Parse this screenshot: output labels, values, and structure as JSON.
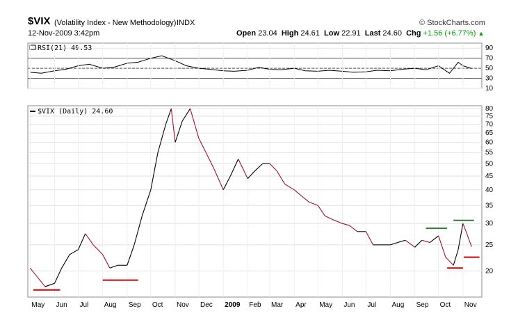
{
  "header": {
    "symbol": "$VIX",
    "description": "(Volatility Index - New Methodology)",
    "exchange": "INDX",
    "brand": "© StockCharts.com",
    "timestamp": "12-Nov-2009 3:42pm",
    "quote": {
      "open_label": "Open",
      "open": "23.04",
      "high_label": "High",
      "high": "24.61",
      "low_label": "Low",
      "low": "22.91",
      "last_label": "Last",
      "last": "24.60",
      "chg_label": "Chg",
      "chg": "+1.56 (+6.77%)",
      "arrow": "▲"
    }
  },
  "chart_data": [
    {
      "type": "line",
      "legend": "RSI(21) 49.53",
      "ylim": [
        10,
        100
      ],
      "yticks": [
        10,
        30,
        50,
        70,
        90
      ],
      "reference_lines": [
        30,
        50,
        70
      ],
      "x": [
        "2008-05-01",
        "2008-05-15",
        "2008-06-01",
        "2008-06-15",
        "2008-07-01",
        "2008-07-15",
        "2008-08-01",
        "2008-08-15",
        "2008-09-01",
        "2008-09-15",
        "2008-10-01",
        "2008-10-15",
        "2008-11-01",
        "2008-11-15",
        "2008-12-01",
        "2008-12-15",
        "2009-01-01",
        "2009-01-15",
        "2009-02-01",
        "2009-02-15",
        "2009-03-01",
        "2009-03-15",
        "2009-04-01",
        "2009-04-15",
        "2009-05-01",
        "2009-05-15",
        "2009-06-01",
        "2009-06-15",
        "2009-07-01",
        "2009-07-15",
        "2009-08-01",
        "2009-08-15",
        "2009-09-01",
        "2009-09-15",
        "2009-10-01",
        "2009-10-15",
        "2009-10-26",
        "2009-11-01",
        "2009-11-12"
      ],
      "y": [
        42,
        40,
        45,
        48,
        55,
        58,
        50,
        52,
        60,
        62,
        70,
        75,
        65,
        55,
        50,
        48,
        45,
        44,
        46,
        52,
        48,
        47,
        50,
        45,
        44,
        46,
        44,
        42,
        43,
        46,
        45,
        48,
        50,
        47,
        55,
        40,
        62,
        55,
        49.53
      ],
      "grid": true,
      "legend_position": "top-left"
    },
    {
      "type": "line",
      "legend": "$VIX (Daily) 24.60",
      "y_scale": "log",
      "ylim": [
        16,
        82
      ],
      "yticks": [
        20,
        25,
        30,
        35,
        40,
        45,
        50,
        55,
        60,
        65,
        70,
        75,
        80
      ],
      "xtick_labels": [
        "May",
        "Jun",
        "Jul",
        "Aug",
        "Sep",
        "Oct",
        "Nov",
        "Dec",
        "2009",
        "Feb",
        "Mar",
        "Apr",
        "May",
        "Jun",
        "Jul",
        "Aug",
        "Sep",
        "Oct",
        "Nov"
      ],
      "x": [
        "2008-05-01",
        "2008-05-10",
        "2008-05-20",
        "2008-06-01",
        "2008-06-10",
        "2008-06-20",
        "2008-07-01",
        "2008-07-10",
        "2008-07-20",
        "2008-08-01",
        "2008-08-10",
        "2008-08-20",
        "2008-09-01",
        "2008-09-10",
        "2008-09-20",
        "2008-10-01",
        "2008-10-10",
        "2008-10-20",
        "2008-10-27",
        "2008-11-01",
        "2008-11-10",
        "2008-11-20",
        "2008-12-01",
        "2008-12-10",
        "2008-12-20",
        "2009-01-01",
        "2009-01-10",
        "2009-01-20",
        "2009-02-01",
        "2009-02-10",
        "2009-02-20",
        "2009-03-01",
        "2009-03-10",
        "2009-03-20",
        "2009-04-01",
        "2009-04-10",
        "2009-04-20",
        "2009-05-01",
        "2009-05-10",
        "2009-05-20",
        "2009-06-01",
        "2009-06-10",
        "2009-06-20",
        "2009-07-01",
        "2009-07-10",
        "2009-07-20",
        "2009-08-01",
        "2009-08-10",
        "2009-08-20",
        "2009-09-01",
        "2009-09-10",
        "2009-09-20",
        "2009-10-01",
        "2009-10-10",
        "2009-10-20",
        "2009-10-26",
        "2009-11-01",
        "2009-11-05",
        "2009-11-12"
      ],
      "y": [
        20.5,
        19.0,
        17.5,
        18.0,
        20.5,
        23.0,
        24.0,
        27.5,
        25.0,
        23.0,
        20.5,
        21.0,
        21.0,
        25.0,
        32.0,
        40.0,
        55.0,
        70.0,
        80.0,
        60.0,
        72.0,
        80.0,
        62.0,
        55.0,
        48.0,
        40.0,
        45.0,
        52.0,
        44.0,
        47.0,
        50.0,
        50.0,
        47.0,
        42.0,
        40.0,
        38.0,
        36.0,
        35.0,
        32.0,
        31.0,
        30.0,
        29.5,
        28.0,
        28.0,
        25.0,
        25.0,
        25.0,
        25.5,
        26.0,
        24.5,
        26.0,
        25.5,
        27.0,
        22.5,
        21.0,
        24.0,
        30.0,
        28.0,
        24.6
      ],
      "annotations": [
        {
          "type": "support",
          "value": 17.0,
          "x_start": "2008-05-05",
          "x_end": "2008-06-08",
          "color": "#cc0000"
        },
        {
          "type": "support",
          "value": 18.5,
          "x_start": "2008-08-01",
          "x_end": "2008-09-15",
          "color": "#cc0000"
        },
        {
          "type": "support",
          "value": 20.5,
          "x_start": "2009-10-12",
          "x_end": "2009-11-01",
          "color": "#cc0000"
        },
        {
          "type": "support",
          "value": 22.5,
          "x_start": "2009-11-02",
          "x_end": "2009-11-22",
          "color": "#cc0000"
        },
        {
          "type": "resistance",
          "value": 28.8,
          "x_start": "2009-09-15",
          "x_end": "2009-10-12",
          "color": "#2e7d32"
        },
        {
          "type": "resistance",
          "value": 30.8,
          "x_start": "2009-10-20",
          "x_end": "2009-11-15",
          "color": "#2e7d32"
        }
      ],
      "colors": {
        "up": "#000000",
        "down": "#a0102a"
      },
      "grid": true,
      "legend_position": "top-left"
    }
  ]
}
